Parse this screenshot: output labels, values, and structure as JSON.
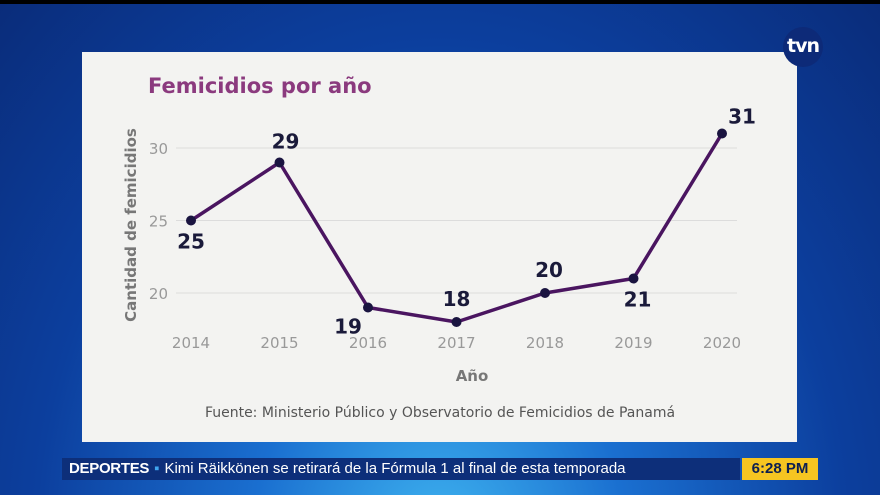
{
  "brand": {
    "logo": "tvn",
    "color": "#0d2a78"
  },
  "chart_data": {
    "type": "line",
    "title": "Femicidios por año",
    "xlabel": "Año",
    "ylabel": "Cantidad de femicidios",
    "categories": [
      "2014",
      "2015",
      "2016",
      "2017",
      "2018",
      "2019",
      "2020"
    ],
    "values": [
      25,
      29,
      19,
      18,
      20,
      21,
      31
    ],
    "yticks": [
      20,
      25,
      30
    ],
    "ylim": [
      18,
      31
    ],
    "grid": true,
    "line_color": "#4a1560",
    "source": "Fuente: Ministerio Público y Observatorio de Femicidios de Panamá"
  },
  "ticker": {
    "section": "DEPORTES",
    "headline": "Kimi Räikkönen se retirará de la Fórmula 1 al final de esta temporada",
    "time": "6:28 PM"
  }
}
